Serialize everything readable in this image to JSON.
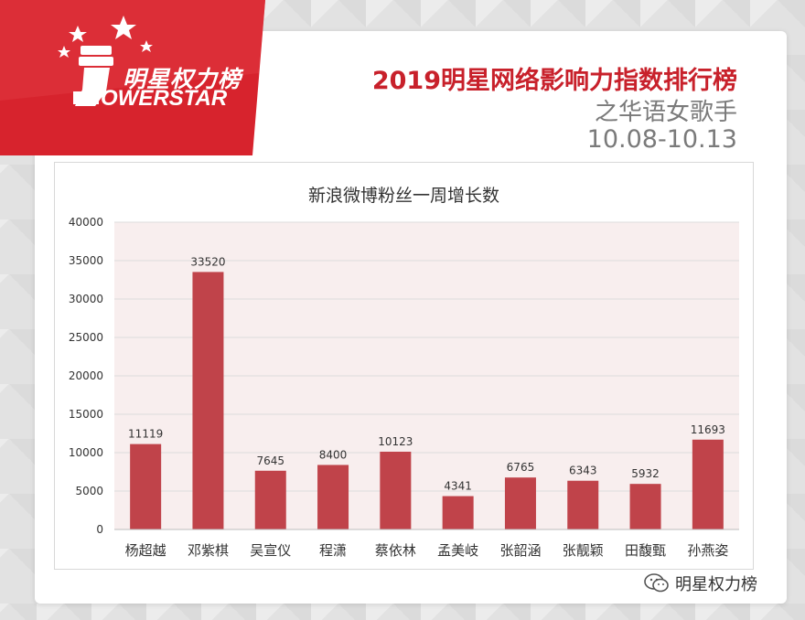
{
  "brand": {
    "logo_cn": "明星权力榜",
    "logo_en": "OWERSTAR",
    "logo_color": "#d7232d"
  },
  "header": {
    "title": "2019明星网络影响力指数排行榜",
    "subtitle": "之华语女歌手",
    "date_range": "10.08-10.13",
    "title_color": "#c8212b"
  },
  "chart_data": {
    "type": "bar",
    "title": "新浪微博粉丝一周增长数",
    "categories": [
      "杨超越",
      "邓紫棋",
      "吴宣仪",
      "程潇",
      "蔡依林",
      "孟美岐",
      "张韶涵",
      "张靓颖",
      "田馥甄",
      "孙燕姿"
    ],
    "values": [
      11119,
      33520,
      7645,
      8400,
      10123,
      4341,
      6765,
      6343,
      5932,
      11693
    ],
    "ylim": [
      0,
      40000
    ],
    "yticks": [
      0,
      5000,
      10000,
      15000,
      20000,
      25000,
      30000,
      35000,
      40000
    ],
    "xlabel": "",
    "ylabel": "",
    "grid": true,
    "bar_color": "#c0434a",
    "plot_bg": "#f8eeee"
  },
  "watermark": {
    "icon": "wechat-icon",
    "text": "明星权力榜"
  }
}
